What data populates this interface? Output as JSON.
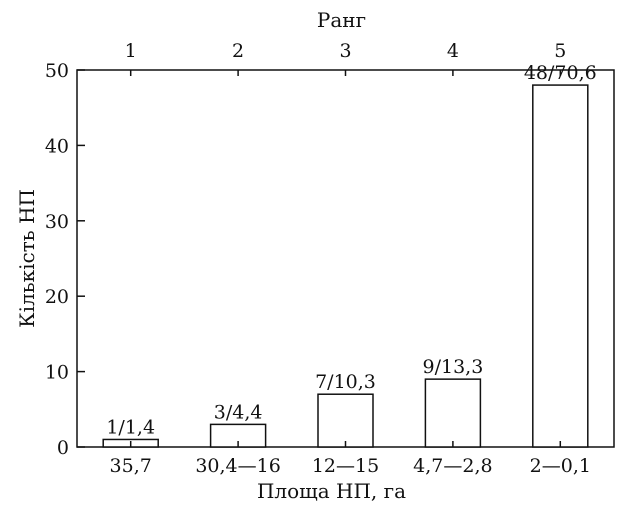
{
  "chart_data": {
    "type": "bar",
    "top_axis_title": "Ранг",
    "top_categories": [
      "1",
      "2",
      "3",
      "4",
      "5"
    ],
    "categories": [
      "35,7",
      "30,4—16",
      "12—15",
      "4,7—2,8",
      "2—0,1"
    ],
    "values": [
      1,
      3,
      7,
      9,
      48
    ],
    "data_labels": [
      "1/1,4",
      "3/4,4",
      "7/10,3",
      "9/13,3",
      "48/70,6"
    ],
    "xlabel": "Площа НП, га",
    "ylabel": "Кількість НП",
    "ylim": [
      0,
      50
    ],
    "yticks": [
      "0",
      "10",
      "20",
      "30",
      "40",
      "50"
    ],
    "grid": false,
    "bar_fill": "#ffffff",
    "bar_stroke": "#111111"
  }
}
